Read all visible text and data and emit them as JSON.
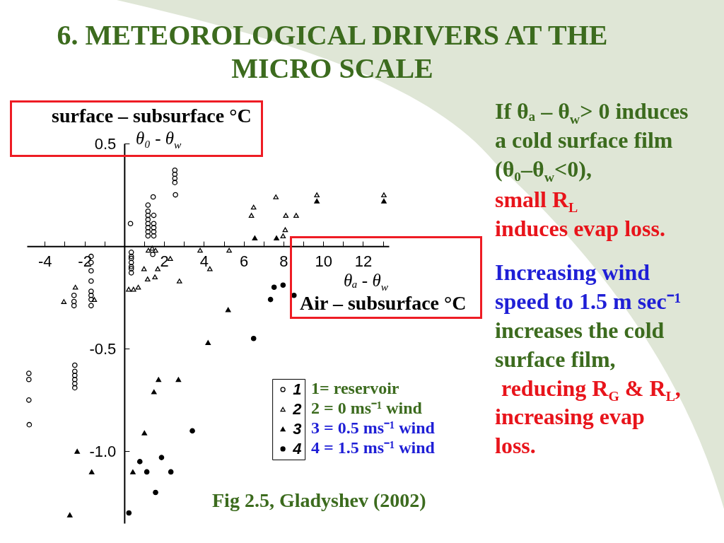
{
  "chart_data": {
    "type": "scatter",
    "title": "6. METEOROLOGICAL DRIVERS AT THE MICRO SCALE",
    "xlabel": "θₐ - θ$_{w}$",
    "ylabel": "θ₀ - θ$_{w}$",
    "xlim": [
      -4.9,
      13.3
    ],
    "ylim": [
      -1.35,
      0.5
    ],
    "xticks": [
      -4,
      {
        "value": -3,
        "label": null
      },
      -2,
      {
        "value": -1,
        "label": null
      },
      {
        "value": 1,
        "label": null
      },
      2,
      {
        "value": 3,
        "label": null
      },
      4,
      {
        "value": 5,
        "label": null
      },
      6,
      {
        "value": 7,
        "label": null
      },
      8,
      {
        "value": 9,
        "label": null
      },
      10,
      {
        "value": 11,
        "label": null
      },
      12,
      {
        "value": 13,
        "label": null
      }
    ],
    "yticks": [
      0.5,
      -0.5,
      {
        "value": -1,
        "label": "-1.0"
      }
    ],
    "legend": "bottom right",
    "series": [
      {
        "name": "1",
        "marker": "circle",
        "color": "#000000",
        "x": [
          2.54,
          2.54,
          2.54,
          2.54,
          2.57,
          1.45,
          1.19,
          1.19,
          1.19,
          1.19,
          1.19,
          1.19,
          1.19,
          1.19,
          1.48,
          1.48,
          1.48,
          1.48,
          1.48,
          0.31,
          0.35,
          0.35,
          0.35,
          0.35,
          0.35,
          0.35,
          0.35,
          1.43,
          -1.67,
          -1.67,
          -1.67,
          -1.67,
          -1.67,
          -1.67,
          -1.67,
          -1.67,
          -2.53,
          -2.53,
          -2.53,
          -4.8,
          -4.8,
          -4.8,
          -4.78,
          -2.49,
          -2.49,
          -2.49,
          -2.49,
          -2.49,
          -2.49
        ],
        "values": [
          0.37,
          0.35,
          0.33,
          0.31,
          0.25,
          0.24,
          0.2,
          0.17,
          0.15,
          0.13,
          0.11,
          0.09,
          0.07,
          0.05,
          0.15,
          0.11,
          0.09,
          0.07,
          0.05,
          0.11,
          -0.03,
          -0.05,
          -0.06,
          -0.08,
          -0.1,
          -0.11,
          -0.13,
          -0.04,
          -0.05,
          -0.08,
          -0.12,
          -0.17,
          -0.22,
          -0.24,
          -0.26,
          -0.29,
          -0.24,
          -0.27,
          -0.29,
          -0.62,
          -0.65,
          -0.75,
          -0.87,
          -0.58,
          -0.61,
          -0.63,
          -0.65,
          -0.67,
          -0.69
        ]
      },
      {
        "name": "2",
        "marker": "triangle",
        "color": "#000000",
        "x": [
          1.21,
          1.4,
          1.57,
          2.31,
          0.99,
          1.68,
          1.17,
          1.54,
          2.77,
          0.22,
          0.46,
          0.7,
          -2.46,
          -3.04,
          -1.51,
          7.62,
          9.68,
          13.05,
          6.5,
          6.39,
          8.12,
          8.64,
          8.09,
          7.98,
          3.81,
          5.27,
          4.3
        ],
        "values": [
          -0.02,
          -0.01,
          -0.02,
          -0.06,
          -0.11,
          -0.11,
          -0.16,
          -0.15,
          -0.17,
          -0.21,
          -0.21,
          -0.2,
          -0.2,
          -0.27,
          -0.26,
          0.24,
          0.25,
          0.25,
          0.19,
          0.15,
          0.15,
          0.15,
          0.08,
          0.05,
          -0.02,
          -0.02,
          -0.11
        ]
      },
      {
        "name": "3",
        "marker": "triangle",
        "color": "#000000",
        "x": [
          9.68,
          13.05,
          6.56,
          7.65,
          5.22,
          4.21,
          1.72,
          2.72,
          1.49,
          1.01,
          -2.37,
          -1.64,
          0.43,
          -2.74
        ],
        "values": [
          0.22,
          0.22,
          0.04,
          0.04,
          -0.31,
          -0.47,
          -0.65,
          -0.65,
          -0.71,
          -0.91,
          -1.0,
          -1.1,
          -1.1,
          -1.31
        ]
      },
      {
        "name": "4",
        "marker": "circle",
        "color": "#000000",
        "x": [
          7.53,
          7.98,
          7.35,
          8.53,
          6.5,
          3.42,
          1.87,
          0.78,
          1.13,
          2.34,
          1.57,
          0.23
        ],
        "values": [
          -0.2,
          -0.19,
          -0.26,
          -0.24,
          -0.45,
          -0.9,
          -1.03,
          -1.05,
          -1.1,
          -1.1,
          -1.2,
          -1.3
        ]
      }
    ],
    "annotations": [
      "surface – subsurface °C",
      "Air – subsurface °C",
      "1= reservoir",
      "2 = 0 ms⁻¹ wind",
      "3 = 0.5 ms⁻¹ wind",
      "4 = 1.5 ms⁻¹ wind",
      "Fig 2.5, Gladyshev (2002)",
      "If θₐ – θ$_{w}$> 0 induces",
      "a cold surface film",
      "(θ₀–θ$_{w}$<0),",
      "small R$_{L}$",
      "induces evap loss.",
      "Increasing wind",
      "speed to 1.5 m sec⁻¹",
      "increases the cold",
      "surface film,",
      "reducing R$_{G}$ & R$_{L}$,",
      "increasing evap",
      "loss."
    ]
  }
}
